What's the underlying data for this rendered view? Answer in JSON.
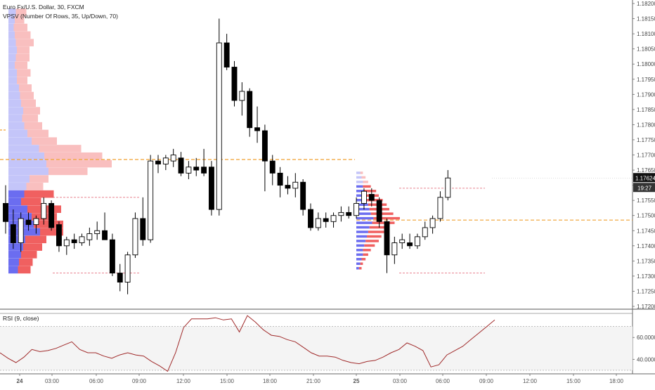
{
  "main": {
    "symbol_title": "Euro Fx/U.S. Dollar, 30, FXCM",
    "indicator_label": "VPSV (Number Of Rows, 35, Up/Down, 70)"
  },
  "rsi": {
    "label": "RSI (9, close)"
  },
  "colors": {
    "up_volume": "#6b6df0",
    "down_volume": "#f06060",
    "poc_line": "#f0a030",
    "value_area_line": "#e05a6a",
    "rsi_line": "#a02a2a",
    "price_tag_bg": "#111111"
  },
  "chart_data": [
    {
      "type": "candlestick",
      "title": "Euro Fx/U.S. Dollar, 30, FXCM",
      "price_axis_labels": [
        "1.18200",
        "1.18150",
        "1.18100",
        "1.18050",
        "1.18000",
        "1.17950",
        "1.17900",
        "1.17850",
        "1.17800",
        "1.17750",
        "1.17700",
        "1.17650",
        "1.17600",
        "1.17550",
        "1.17500",
        "1.17450",
        "1.17400",
        "1.17350",
        "1.17300",
        "1.17250",
        "1.17200"
      ],
      "ylim": [
        1.172,
        1.1822
      ],
      "time_axis_labels": [
        "24",
        "03:00",
        "06:00",
        "09:00",
        "12:00",
        "15:00",
        "18:00",
        "21:00",
        "25",
        "03:00",
        "06:00",
        "09:00",
        "12:00",
        "15:00",
        "18:00"
      ],
      "current_price": "1.17624",
      "countdown": "19:27",
      "candles": [
        {
          "o": 1.1754,
          "h": 1.176,
          "l": 1.1744,
          "c": 1.1748
        },
        {
          "o": 1.1747,
          "h": 1.1752,
          "l": 1.1739,
          "c": 1.1741
        },
        {
          "o": 1.1741,
          "h": 1.1751,
          "l": 1.1738,
          "c": 1.1749
        },
        {
          "o": 1.17485,
          "h": 1.1751,
          "l": 1.1745,
          "c": 1.1747
        },
        {
          "o": 1.1747,
          "h": 1.175,
          "l": 1.1744,
          "c": 1.1749
        },
        {
          "o": 1.1749,
          "h": 1.1756,
          "l": 1.1747,
          "c": 1.1754
        },
        {
          "o": 1.1754,
          "h": 1.1755,
          "l": 1.1745,
          "c": 1.1746
        },
        {
          "o": 1.1747,
          "h": 1.1748,
          "l": 1.1738,
          "c": 1.174
        },
        {
          "o": 1.174,
          "h": 1.1743,
          "l": 1.1737,
          "c": 1.1742
        },
        {
          "o": 1.1742,
          "h": 1.1744,
          "l": 1.1739,
          "c": 1.1741
        },
        {
          "o": 1.1741,
          "h": 1.1744,
          "l": 1.174,
          "c": 1.1743
        },
        {
          "o": 1.1742,
          "h": 1.1746,
          "l": 1.174,
          "c": 1.1744
        },
        {
          "o": 1.1744,
          "h": 1.1748,
          "l": 1.1742,
          "c": 1.1745
        },
        {
          "o": 1.1745,
          "h": 1.1751,
          "l": 1.1743,
          "c": 1.1742
        },
        {
          "o": 1.1742,
          "h": 1.1744,
          "l": 1.173,
          "c": 1.1731
        },
        {
          "o": 1.1731,
          "h": 1.1734,
          "l": 1.1725,
          "c": 1.1728
        },
        {
          "o": 1.1728,
          "h": 1.1738,
          "l": 1.1724,
          "c": 1.1737
        },
        {
          "o": 1.1737,
          "h": 1.1751,
          "l": 1.1736,
          "c": 1.1749
        },
        {
          "o": 1.1749,
          "h": 1.1756,
          "l": 1.174,
          "c": 1.1742
        },
        {
          "o": 1.1742,
          "h": 1.177,
          "l": 1.1741,
          "c": 1.1768
        },
        {
          "o": 1.1768,
          "h": 1.177,
          "l": 1.1764,
          "c": 1.1767
        },
        {
          "o": 1.1767,
          "h": 1.177,
          "l": 1.1765,
          "c": 1.1769
        },
        {
          "o": 1.1768,
          "h": 1.1772,
          "l": 1.1766,
          "c": 1.177
        },
        {
          "o": 1.1769,
          "h": 1.1771,
          "l": 1.1763,
          "c": 1.1764
        },
        {
          "o": 1.1764,
          "h": 1.1768,
          "l": 1.1762,
          "c": 1.1766
        },
        {
          "o": 1.1766,
          "h": 1.1769,
          "l": 1.1763,
          "c": 1.1765
        },
        {
          "o": 1.1766,
          "h": 1.1772,
          "l": 1.1763,
          "c": 1.1764
        },
        {
          "o": 1.1766,
          "h": 1.1768,
          "l": 1.175,
          "c": 1.1752
        },
        {
          "o": 1.1752,
          "h": 1.1815,
          "l": 1.175,
          "c": 1.1807
        },
        {
          "o": 1.1807,
          "h": 1.181,
          "l": 1.1798,
          "c": 1.1799
        },
        {
          "o": 1.1799,
          "h": 1.1801,
          "l": 1.1786,
          "c": 1.1788
        },
        {
          "o": 1.1788,
          "h": 1.1794,
          "l": 1.1783,
          "c": 1.1791
        },
        {
          "o": 1.1791,
          "h": 1.1792,
          "l": 1.1776,
          "c": 1.1779
        },
        {
          "o": 1.1779,
          "h": 1.1786,
          "l": 1.1774,
          "c": 1.1778
        },
        {
          "o": 1.1778,
          "h": 1.178,
          "l": 1.1758,
          "c": 1.1768
        },
        {
          "o": 1.1768,
          "h": 1.177,
          "l": 1.176,
          "c": 1.1764
        },
        {
          "o": 1.1764,
          "h": 1.1766,
          "l": 1.1756,
          "c": 1.176
        },
        {
          "o": 1.176,
          "h": 1.1763,
          "l": 1.1757,
          "c": 1.1759
        },
        {
          "o": 1.1759,
          "h": 1.1764,
          "l": 1.1756,
          "c": 1.1761
        },
        {
          "o": 1.1761,
          "h": 1.1762,
          "l": 1.175,
          "c": 1.1752
        },
        {
          "o": 1.1752,
          "h": 1.1754,
          "l": 1.1745,
          "c": 1.1746
        },
        {
          "o": 1.1746,
          "h": 1.1751,
          "l": 1.1745,
          "c": 1.1749
        },
        {
          "o": 1.1749,
          "h": 1.1751,
          "l": 1.1746,
          "c": 1.1748
        },
        {
          "o": 1.1748,
          "h": 1.1751,
          "l": 1.1746,
          "c": 1.175
        },
        {
          "o": 1.175,
          "h": 1.1753,
          "l": 1.1748,
          "c": 1.1751
        },
        {
          "o": 1.1751,
          "h": 1.1753,
          "l": 1.1749,
          "c": 1.175
        },
        {
          "o": 1.175,
          "h": 1.1756,
          "l": 1.1749,
          "c": 1.1754
        },
        {
          "o": 1.1754,
          "h": 1.1759,
          "l": 1.1752,
          "c": 1.1758
        },
        {
          "o": 1.1757,
          "h": 1.1759,
          "l": 1.1753,
          "c": 1.1755
        },
        {
          "o": 1.1755,
          "h": 1.1756,
          "l": 1.1746,
          "c": 1.1748
        },
        {
          "o": 1.1748,
          "h": 1.1749,
          "l": 1.1731,
          "c": 1.1737
        },
        {
          "o": 1.1737,
          "h": 1.1743,
          "l": 1.1734,
          "c": 1.1741
        },
        {
          "o": 1.1741,
          "h": 1.1744,
          "l": 1.1739,
          "c": 1.1742
        },
        {
          "o": 1.1741,
          "h": 1.1744,
          "l": 1.1739,
          "c": 1.174
        },
        {
          "o": 1.174,
          "h": 1.1744,
          "l": 1.1739,
          "c": 1.1743
        },
        {
          "o": 1.1743,
          "h": 1.1748,
          "l": 1.1742,
          "c": 1.1746
        },
        {
          "o": 1.1746,
          "h": 1.175,
          "l": 1.1744,
          "c": 1.1749
        },
        {
          "o": 1.1749,
          "h": 1.1758,
          "l": 1.1748,
          "c": 1.1756
        },
        {
          "o": 1.1756,
          "h": 1.1765,
          "l": 1.1755,
          "c": 1.17624
        }
      ],
      "volume_profiles": [
        {
          "session": "24",
          "poc": 1.17685,
          "value_area_high": 1.1756,
          "value_area_low": 1.1731,
          "rows": [
            {
              "p": 1.1817,
              "up": 0.07,
              "dn": 0.1
            },
            {
              "p": 1.18145,
              "up": 0.06,
              "dn": 0.09
            },
            {
              "p": 1.1812,
              "up": 0.05,
              "dn": 0.13
            },
            {
              "p": 1.18095,
              "up": 0.06,
              "dn": 0.15
            },
            {
              "p": 1.1807,
              "up": 0.07,
              "dn": 0.17
            },
            {
              "p": 1.18045,
              "up": 0.08,
              "dn": 0.12
            },
            {
              "p": 1.1802,
              "up": 0.07,
              "dn": 0.13
            },
            {
              "p": 1.17995,
              "up": 0.06,
              "dn": 0.12
            },
            {
              "p": 1.1797,
              "up": 0.08,
              "dn": 0.13
            },
            {
              "p": 1.17945,
              "up": 0.08,
              "dn": 0.1
            },
            {
              "p": 1.1792,
              "up": 0.1,
              "dn": 0.12
            },
            {
              "p": 1.17895,
              "up": 0.11,
              "dn": 0.13
            },
            {
              "p": 1.1787,
              "up": 0.12,
              "dn": 0.14
            },
            {
              "p": 1.17845,
              "up": 0.14,
              "dn": 0.16
            },
            {
              "p": 1.1782,
              "up": 0.13,
              "dn": 0.15
            },
            {
              "p": 1.17795,
              "up": 0.15,
              "dn": 0.17
            },
            {
              "p": 1.1777,
              "up": 0.18,
              "dn": 0.2
            },
            {
              "p": 1.17745,
              "up": 0.22,
              "dn": 0.24
            },
            {
              "p": 1.1772,
              "up": 0.29,
              "dn": 0.4
            },
            {
              "p": 1.17695,
              "up": 0.34,
              "dn": 0.55
            },
            {
              "p": 1.1767,
              "up": 0.36,
              "dn": 0.62
            },
            {
              "p": 1.17645,
              "up": 0.38,
              "dn": 0.37
            },
            {
              "p": 1.1762,
              "up": 0.2,
              "dn": 0.18
            },
            {
              "p": 1.17595,
              "up": 0.17,
              "dn": 0.16
            },
            {
              "p": 1.1757,
              "up": 0.15,
              "dn": 0.28
            },
            {
              "p": 1.17545,
              "up": 0.12,
              "dn": 0.19
            },
            {
              "p": 1.1752,
              "up": 0.18,
              "dn": 0.32
            },
            {
              "p": 1.17495,
              "up": 0.22,
              "dn": 0.24
            },
            {
              "p": 1.1747,
              "up": 0.24,
              "dn": 0.28
            },
            {
              "p": 1.17445,
              "up": 0.3,
              "dn": 0.22
            },
            {
              "p": 1.1742,
              "up": 0.16,
              "dn": 0.2
            },
            {
              "p": 1.17395,
              "up": 0.14,
              "dn": 0.18
            },
            {
              "p": 1.1737,
              "up": 0.12,
              "dn": 0.15
            },
            {
              "p": 1.17345,
              "up": 0.1,
              "dn": 0.13
            },
            {
              "p": 1.1732,
              "up": 0.09,
              "dn": 0.12
            }
          ]
        },
        {
          "session": "25",
          "poc": 1.17485,
          "value_area_high": 1.1759,
          "value_area_low": 1.1731,
          "rows": [
            {
              "p": 1.1764,
              "up": 0.03,
              "dn": 0.02
            },
            {
              "p": 1.17625,
              "up": 0.04,
              "dn": 0.03
            },
            {
              "p": 1.1761,
              "up": 0.05,
              "dn": 0.04
            },
            {
              "p": 1.17595,
              "up": 0.05,
              "dn": 0.06
            },
            {
              "p": 1.1758,
              "up": 0.06,
              "dn": 0.09
            },
            {
              "p": 1.17565,
              "up": 0.07,
              "dn": 0.1
            },
            {
              "p": 1.1755,
              "up": 0.08,
              "dn": 0.12
            },
            {
              "p": 1.17535,
              "up": 0.09,
              "dn": 0.14
            },
            {
              "p": 1.1752,
              "up": 0.1,
              "dn": 0.15
            },
            {
              "p": 1.17505,
              "up": 0.11,
              "dn": 0.17
            },
            {
              "p": 1.1749,
              "up": 0.13,
              "dn": 0.2
            },
            {
              "p": 1.17475,
              "up": 0.12,
              "dn": 0.17
            },
            {
              "p": 1.1746,
              "up": 0.1,
              "dn": 0.14
            },
            {
              "p": 1.17445,
              "up": 0.09,
              "dn": 0.12
            },
            {
              "p": 1.1743,
              "up": 0.08,
              "dn": 0.11
            },
            {
              "p": 1.17415,
              "up": 0.07,
              "dn": 0.1
            },
            {
              "p": 1.174,
              "up": 0.06,
              "dn": 0.08
            },
            {
              "p": 1.17385,
              "up": 0.05,
              "dn": 0.06
            },
            {
              "p": 1.1737,
              "up": 0.05,
              "dn": 0.04
            },
            {
              "p": 1.17355,
              "up": 0.04,
              "dn": 0.03
            },
            {
              "p": 1.1734,
              "up": 0.03,
              "dn": 0.02
            },
            {
              "p": 1.17325,
              "up": 0.02,
              "dn": 0.02
            }
          ]
        }
      ]
    },
    {
      "type": "line",
      "title": "RSI (9, close)",
      "ylim": [
        28,
        82
      ],
      "tick_labels": [
        "60.0000",
        "40.0000"
      ],
      "tick_values": [
        60,
        40
      ],
      "values": [
        46,
        41,
        37,
        42,
        49,
        47,
        48,
        50,
        53,
        56,
        49,
        46,
        46,
        43,
        41,
        44,
        46,
        44,
        43,
        38,
        34,
        29,
        46,
        69,
        77,
        77,
        77,
        78,
        76,
        77,
        65,
        80,
        74,
        67,
        62,
        61,
        58,
        56,
        51,
        46,
        43,
        43,
        42,
        39,
        37,
        36,
        38,
        39,
        42,
        46,
        49,
        55,
        52,
        48,
        33,
        35,
        44,
        48,
        52,
        58,
        64,
        70,
        76
      ]
    }
  ]
}
